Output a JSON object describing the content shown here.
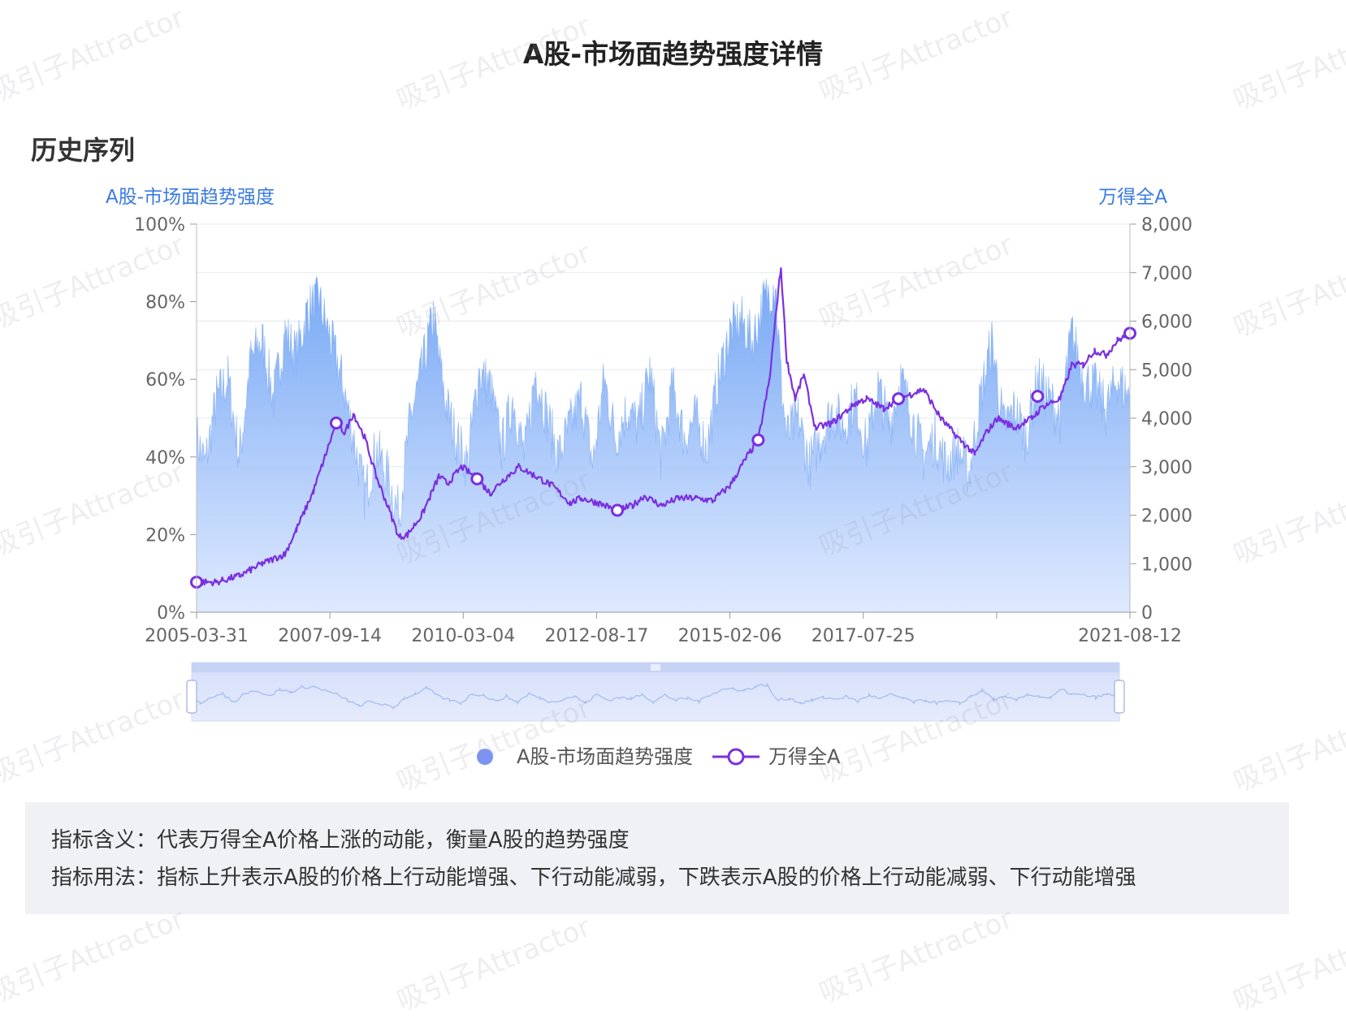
{
  "page_title": "A股-市场面趋势强度详情",
  "section_title": "历史序列",
  "watermark_text": "吸引子Attractor",
  "legend": {
    "items": [
      {
        "label": "A股-市场面趋势强度",
        "color": "#7b93f2",
        "marker": "circle"
      },
      {
        "label": "万得全A",
        "color": "#7a2fe0",
        "marker": "line-ring"
      }
    ]
  },
  "description": {
    "meaning": "指标含义：代表万得全A价格上涨的动能，衡量A股的趋势强度",
    "usage": "指标用法：指标上升表示A股的价格上行动能增强、下行动能减弱，下跌表示A股的价格上行动能减弱、下行动能增强"
  },
  "chart_data": {
    "type": "area+line",
    "left_axis": {
      "name": "A股-市场面趋势强度",
      "min": 0,
      "max": 100,
      "ticks": [
        "0%",
        "20%",
        "40%",
        "60%",
        "80%",
        "100%"
      ],
      "color": "#3a7be0"
    },
    "right_axis": {
      "name": "万得全A",
      "min": 0,
      "max": 8000,
      "ticks": [
        "0",
        "1,000",
        "2,000",
        "3,000",
        "4,000",
        "5,000",
        "6,000",
        "7,000",
        "8,000"
      ],
      "color": "#3a7be0"
    },
    "x_axis": {
      "start": 2005.25,
      "end": 2021.62,
      "tick_labels": [
        "2005-03-31",
        "2007-09-14",
        "2010-03-04",
        "2012-08-17",
        "2015-02-06",
        "2017-07-25",
        "",
        "2021-08-12"
      ]
    },
    "grid": true,
    "series": [
      {
        "name": "A股-市场面趋势强度",
        "axis": "left",
        "style": "area",
        "color": "#7aa9f5",
        "x": [
          2005.25,
          2005.4,
          2005.6,
          2005.8,
          2006.0,
          2006.2,
          2006.4,
          2006.6,
          2006.8,
          2007.0,
          2007.2,
          2007.4,
          2007.6,
          2007.8,
          2008.0,
          2008.2,
          2008.4,
          2008.6,
          2008.8,
          2009.0,
          2009.2,
          2009.4,
          2009.6,
          2009.8,
          2010.0,
          2010.2,
          2010.4,
          2010.6,
          2010.8,
          2011.0,
          2011.2,
          2011.4,
          2011.6,
          2011.8,
          2012.0,
          2012.2,
          2012.4,
          2012.6,
          2012.8,
          2013.0,
          2013.2,
          2013.4,
          2013.6,
          2013.8,
          2014.0,
          2014.2,
          2014.4,
          2014.6,
          2014.8,
          2015.0,
          2015.2,
          2015.4,
          2015.5,
          2015.6,
          2015.8,
          2016.0,
          2016.2,
          2016.4,
          2016.6,
          2016.8,
          2017.0,
          2017.2,
          2017.4,
          2017.6,
          2017.8,
          2018.0,
          2018.2,
          2018.4,
          2018.6,
          2018.8,
          2019.0,
          2019.2,
          2019.4,
          2019.6,
          2019.8,
          2020.0,
          2020.2,
          2020.4,
          2020.6,
          2020.8,
          2021.0,
          2021.2,
          2021.4,
          2021.62
        ],
        "values": [
          45,
          38,
          55,
          60,
          40,
          65,
          70,
          55,
          72,
          66,
          78,
          80,
          70,
          60,
          45,
          30,
          42,
          35,
          25,
          50,
          62,
          76,
          55,
          45,
          38,
          62,
          58,
          42,
          55,
          40,
          62,
          50,
          40,
          48,
          55,
          38,
          60,
          45,
          52,
          48,
          62,
          40,
          58,
          45,
          50,
          42,
          60,
          72,
          75,
          70,
          80,
          85,
          60,
          45,
          50,
          38,
          45,
          52,
          48,
          55,
          42,
          58,
          48,
          60,
          50,
          40,
          45,
          38,
          42,
          36,
          55,
          70,
          48,
          52,
          45,
          60,
          55,
          50,
          72,
          60,
          58,
          52,
          60,
          55
        ]
      },
      {
        "name": "万得全A",
        "axis": "right",
        "style": "line",
        "color": "#7a2fe0",
        "x": [
          2005.25,
          2005.6,
          2006.0,
          2006.4,
          2006.8,
          2007.0,
          2007.3,
          2007.5,
          2007.7,
          2007.85,
          2008.0,
          2008.2,
          2008.4,
          2008.6,
          2008.8,
          2008.95,
          2009.2,
          2009.5,
          2009.65,
          2009.9,
          2010.17,
          2010.4,
          2010.6,
          2010.9,
          2011.2,
          2011.5,
          2011.8,
          2012.0,
          2012.3,
          2012.63,
          2012.9,
          2013.1,
          2013.4,
          2013.7,
          2014.0,
          2014.3,
          2014.6,
          2014.9,
          2015.1,
          2015.3,
          2015.45,
          2015.5,
          2015.6,
          2015.75,
          2015.9,
          2016.1,
          2016.4,
          2016.8,
          2017.0,
          2017.3,
          2017.56,
          2017.8,
          2018.0,
          2018.3,
          2018.6,
          2018.9,
          2019.1,
          2019.3,
          2019.6,
          2019.9,
          2020.1,
          2020.4,
          2020.6,
          2020.8,
          2021.0,
          2021.2,
          2021.4,
          2021.62
        ],
        "values": [
          620,
          620,
          750,
          1000,
          1200,
          1700,
          2500,
          3200,
          3900,
          3700,
          4100,
          3600,
          2800,
          2200,
          1550,
          1600,
          2000,
          2800,
          2650,
          3000,
          2750,
          2450,
          2700,
          3000,
          2800,
          2600,
          2250,
          2350,
          2250,
          2100,
          2200,
          2400,
          2200,
          2350,
          2350,
          2300,
          2600,
          3200,
          3550,
          4800,
          6600,
          7100,
          5200,
          4400,
          4900,
          3800,
          3900,
          4300,
          4400,
          4200,
          4400,
          4500,
          4600,
          4000,
          3600,
          3250,
          3700,
          4000,
          3800,
          4000,
          4250,
          4400,
          5100,
          5100,
          5400,
          5300,
          5600,
          5750
        ]
      }
    ]
  },
  "highlighted_points": [
    {
      "x": 2005.25,
      "value": 620
    },
    {
      "x": 2007.7,
      "value": 3900
    },
    {
      "x": 2010.17,
      "value": 2750
    },
    {
      "x": 2012.63,
      "value": 2100
    },
    {
      "x": 2015.1,
      "value": 3550
    },
    {
      "x": 2017.56,
      "value": 4400
    },
    {
      "x": 2020.0,
      "value": 4450
    },
    {
      "x": 2021.62,
      "value": 5750
    }
  ],
  "colors": {
    "area_top": "#6fa3f4",
    "area_bottom": "#dbe7ff",
    "line": "#7a2fe0",
    "axis_label": "#3a7be0",
    "grid": "#e6e8ee",
    "tick_text": "#666666"
  }
}
